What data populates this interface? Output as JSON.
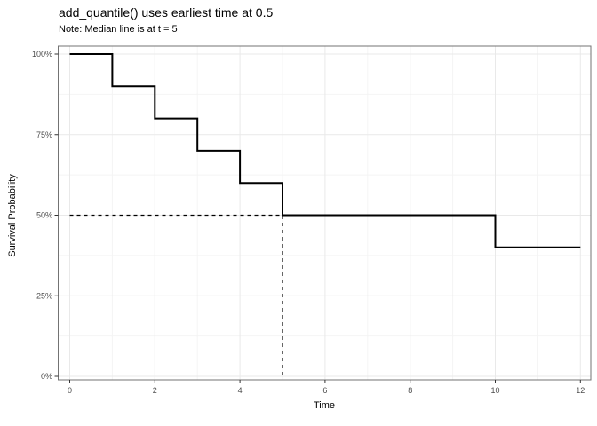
{
  "chart_data": {
    "type": "line",
    "step": true,
    "title": "add_quantile() uses earliest time at 0.5",
    "subtitle": "Note: Median line is at t = 5",
    "xlabel": "Time",
    "ylabel": "Survival Probability",
    "x_ticks": [
      0,
      2,
      4,
      6,
      8,
      10,
      12
    ],
    "x_minor_gridlines": [
      1,
      3,
      5,
      7,
      9,
      11
    ],
    "y_ticks": [
      {
        "value": 0.0,
        "label": "0%"
      },
      {
        "value": 0.25,
        "label": "25%"
      },
      {
        "value": 0.5,
        "label": "50%"
      },
      {
        "value": 0.75,
        "label": "75%"
      },
      {
        "value": 1.0,
        "label": "100%"
      }
    ],
    "y_minor_gridlines": [
      0.125,
      0.375,
      0.625,
      0.875
    ],
    "xlim": [
      0,
      12
    ],
    "ylim": [
      0,
      1
    ],
    "grid": true,
    "legend": "none",
    "series": [
      {
        "name": "survival-curve",
        "color": "#000000",
        "points": [
          [
            0,
            1.0
          ],
          [
            1,
            1.0
          ],
          [
            1,
            0.9
          ],
          [
            2,
            0.9
          ],
          [
            2,
            0.8
          ],
          [
            3,
            0.8
          ],
          [
            3,
            0.7
          ],
          [
            4,
            0.7
          ],
          [
            4,
            0.6
          ],
          [
            5,
            0.6
          ],
          [
            5,
            0.5
          ],
          [
            10,
            0.5
          ],
          [
            10,
            0.4
          ],
          [
            12,
            0.4
          ]
        ]
      }
    ],
    "annotations": [
      {
        "name": "median-quantile-line",
        "type": "dashed-segments",
        "quantile": 0.5,
        "time": 5,
        "points": [
          [
            0,
            0.5
          ],
          [
            5,
            0.5
          ],
          [
            5,
            0
          ]
        ]
      }
    ],
    "colors": {
      "curve": "#000000",
      "annotation": "#000000",
      "grid_major": "#e9e9e9",
      "grid_minor": "#f4f4f4",
      "panel_border": "#737373",
      "panel_bg": "#ffffff",
      "tick": "#333333",
      "tick_label": "#4d4d4d"
    }
  }
}
